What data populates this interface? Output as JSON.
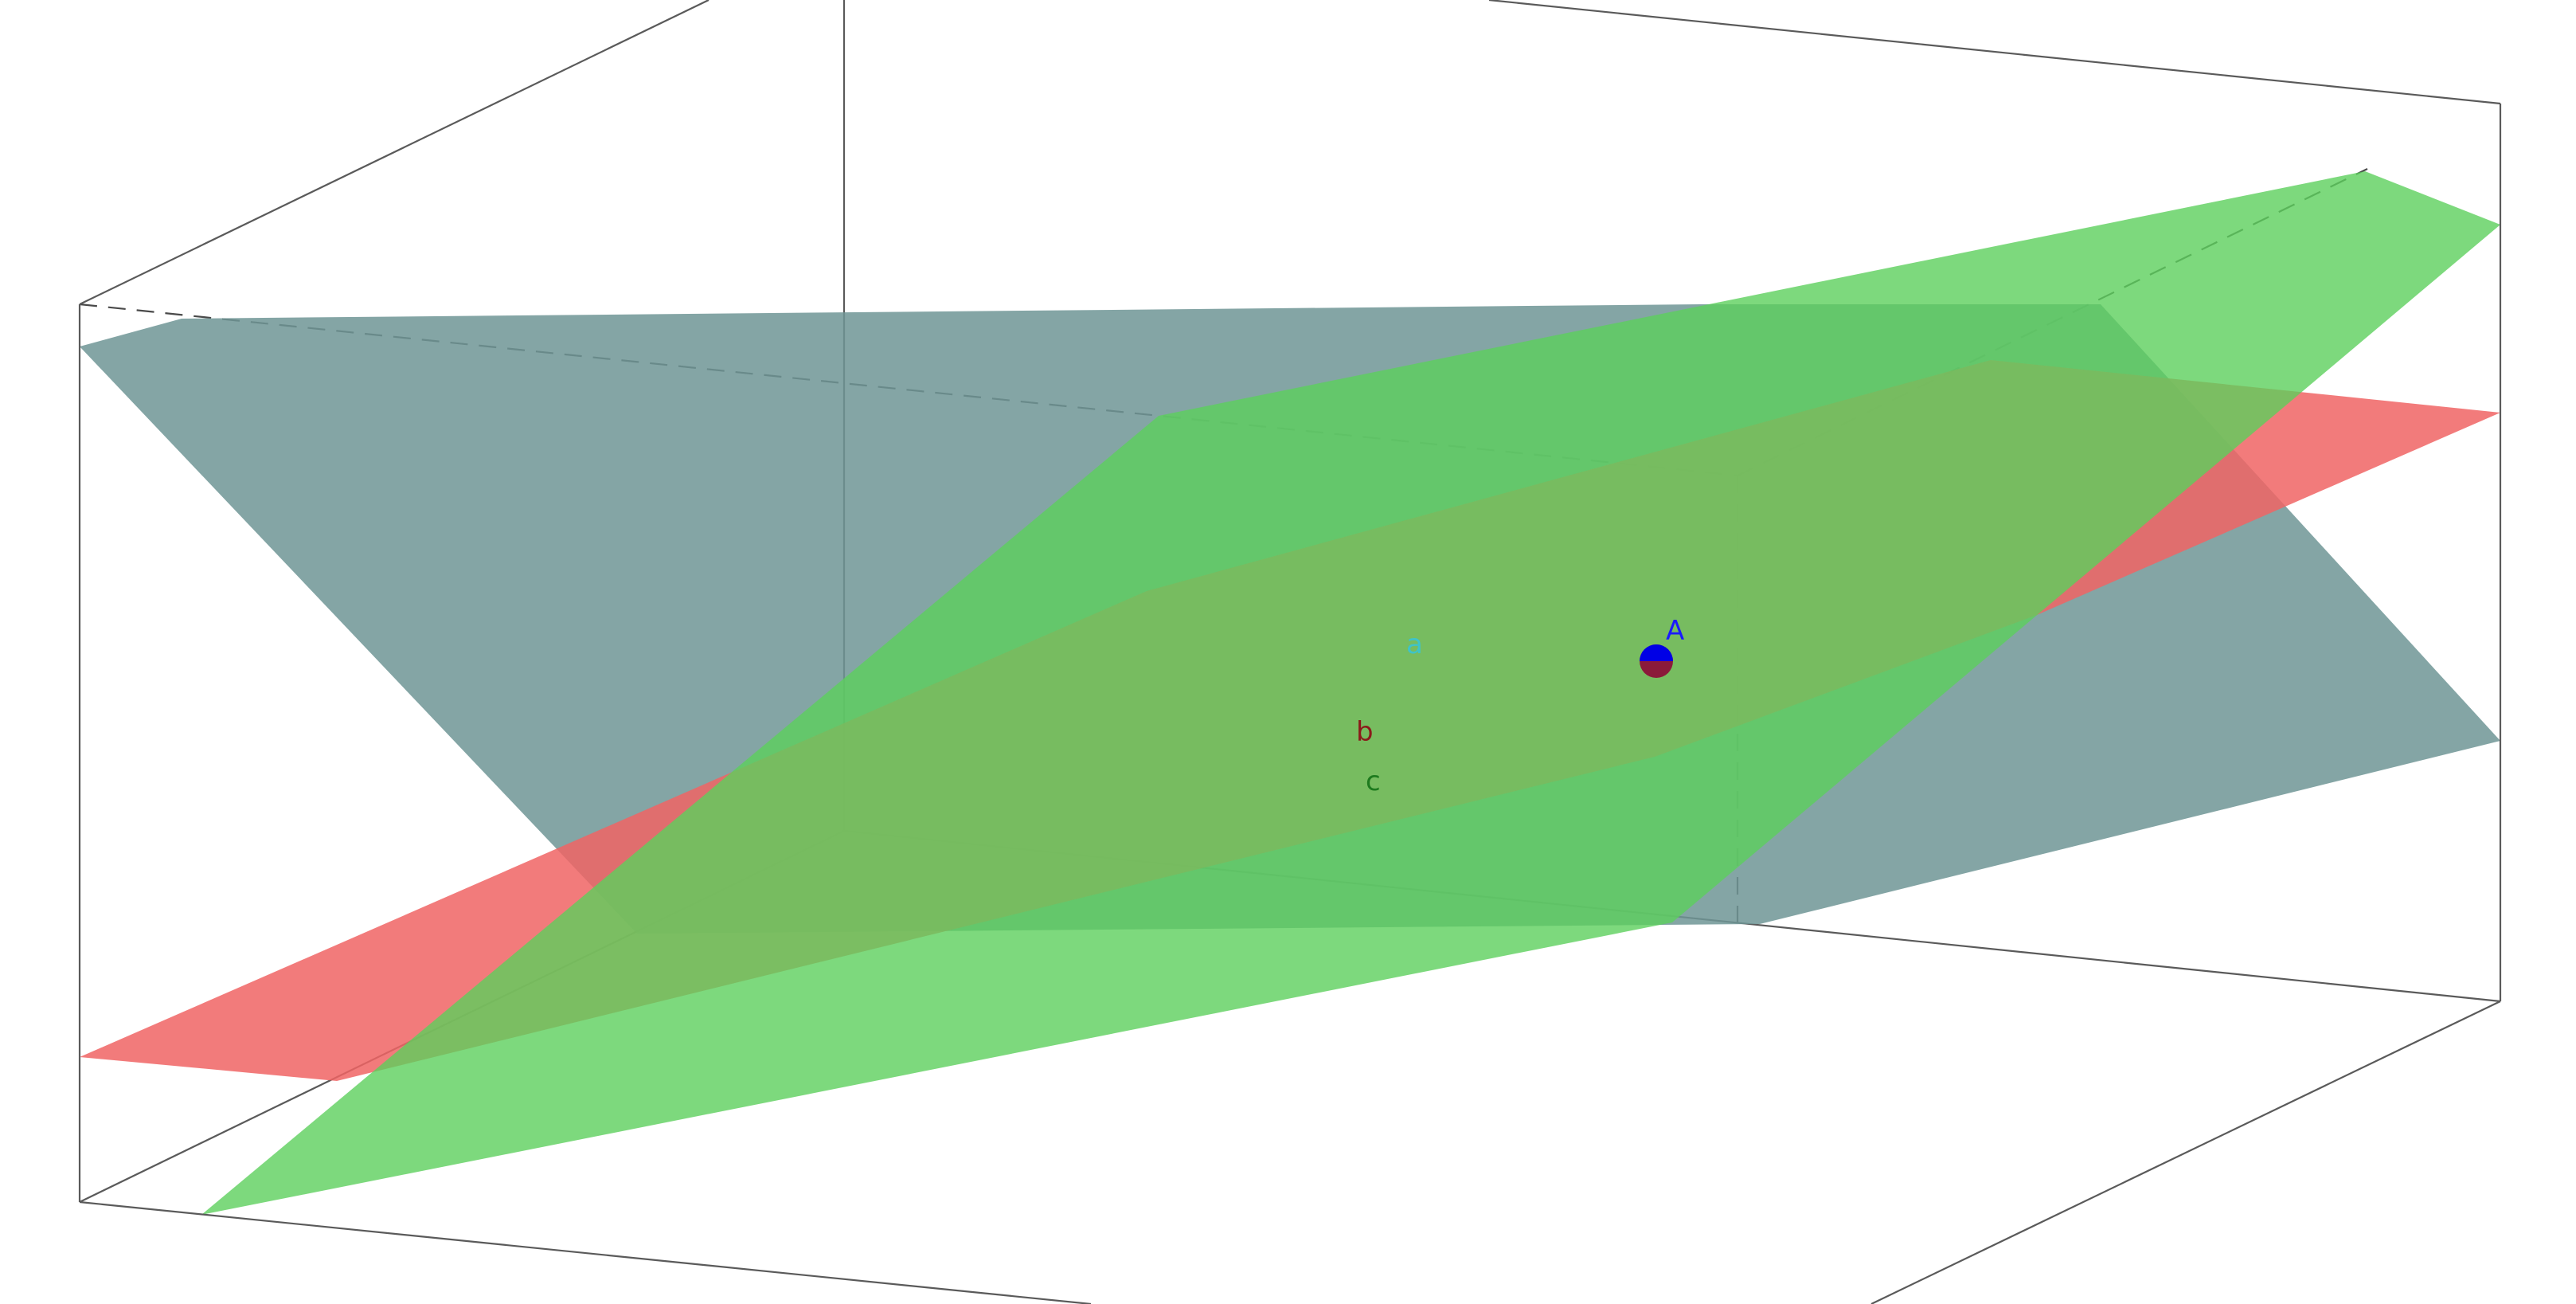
{
  "planes": [
    {
      "name": "a",
      "color": "#6f9595",
      "label_color": "#3fc3c8",
      "opacity": 0.85
    },
    {
      "name": "b",
      "color": "#f06464",
      "label_color": "#8b1a1a",
      "opacity": 0.85
    },
    {
      "name": "c",
      "color": "#5cd05c",
      "label_color": "#1e7a1e",
      "opacity": 0.8
    }
  ],
  "point": {
    "name": "A",
    "color": "#0000e6",
    "label_color": "#1a1aff"
  }
}
